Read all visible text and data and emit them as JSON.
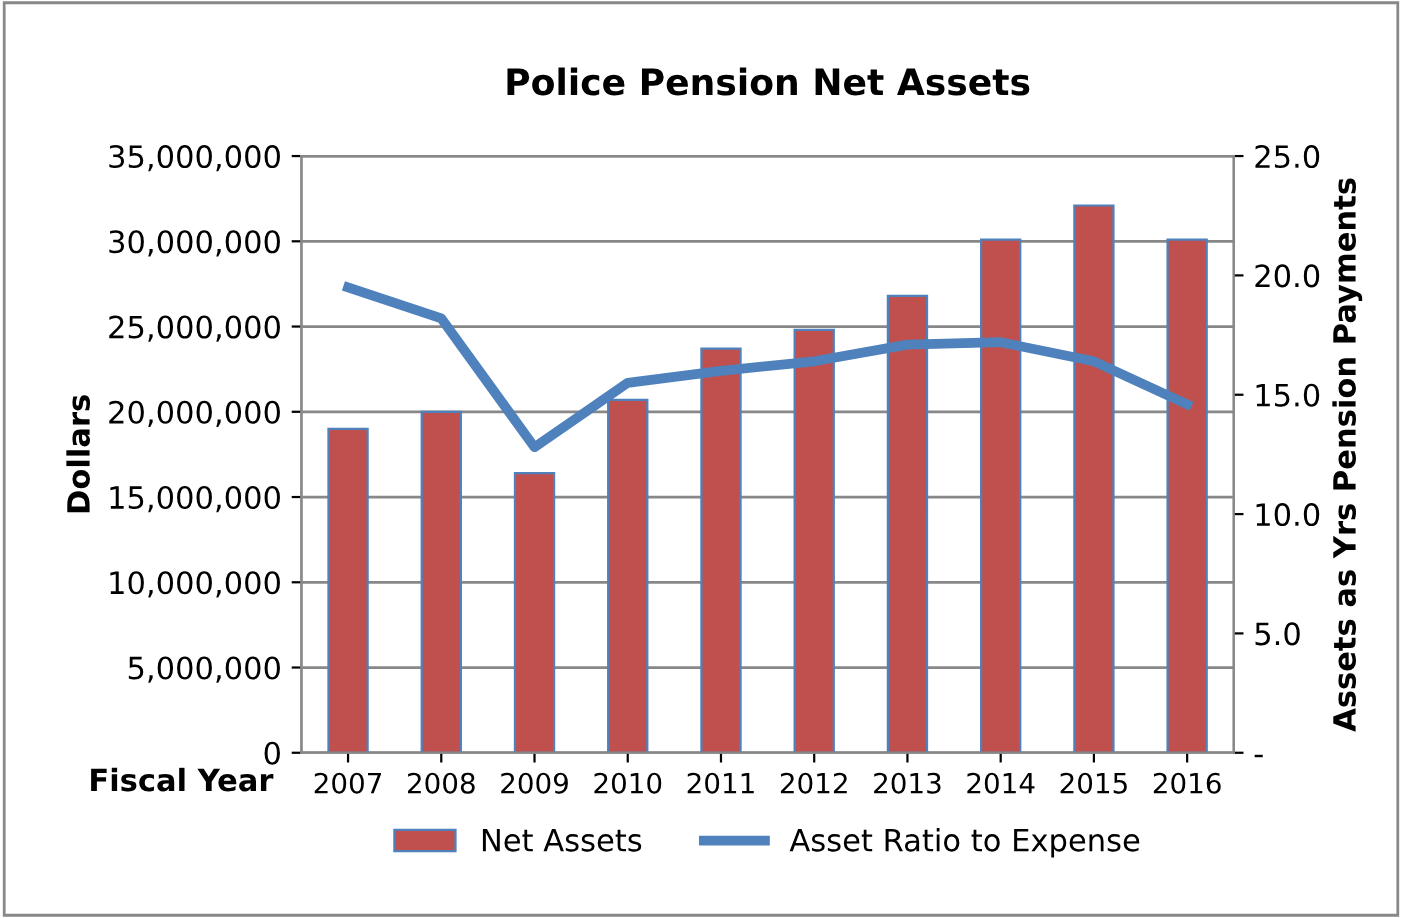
{
  "chart_data": {
    "type": "bar",
    "title": "Police Pension Net Assets",
    "xlabel": "Fiscal Year",
    "ylabel": "Dollars",
    "y2label": "Assets as Yrs Pension Payments",
    "categories": [
      "2007",
      "2008",
      "2009",
      "2010",
      "2011",
      "2012",
      "2013",
      "2014",
      "2015",
      "2016"
    ],
    "series": [
      {
        "name": "Net Assets",
        "color": "#c0504d",
        "values": [
          19000000,
          20000000,
          16400000,
          20700000,
          23700000,
          24800000,
          26800000,
          30100000,
          32100000,
          30100000
        ]
      },
      {
        "name": "Asset Ratio to Expense",
        "type": "line",
        "axis": "y2",
        "color": "#4f81bd",
        "values": [
          19.5,
          18.2,
          12.8,
          15.5,
          16.0,
          16.4,
          17.1,
          17.2,
          16.4,
          14.6
        ]
      }
    ],
    "ylim": [
      0,
      35000000
    ],
    "yticks": [
      {
        "value": 0,
        "label": "0"
      },
      {
        "value": 5000000,
        "label": "5,000,000"
      },
      {
        "value": 10000000,
        "label": "10,000,000"
      },
      {
        "value": 15000000,
        "label": "15,000,000"
      },
      {
        "value": 20000000,
        "label": "20,000,000"
      },
      {
        "value": 25000000,
        "label": "25,000,000"
      },
      {
        "value": 30000000,
        "label": "30,000,000"
      },
      {
        "value": 35000000,
        "label": "35,000,000"
      }
    ],
    "y2lim": [
      0,
      25
    ],
    "y2ticks": [
      {
        "value": 0,
        "label": "-"
      },
      {
        "value": 5,
        "label": "5.0"
      },
      {
        "value": 10,
        "label": "10.0"
      },
      {
        "value": 15,
        "label": "15.0"
      },
      {
        "value": 20,
        "label": "20.0"
      },
      {
        "value": 25,
        "label": "25.0"
      }
    ],
    "grid": "y",
    "legend": "bottom",
    "marker": "none",
    "line_style": "solid"
  }
}
